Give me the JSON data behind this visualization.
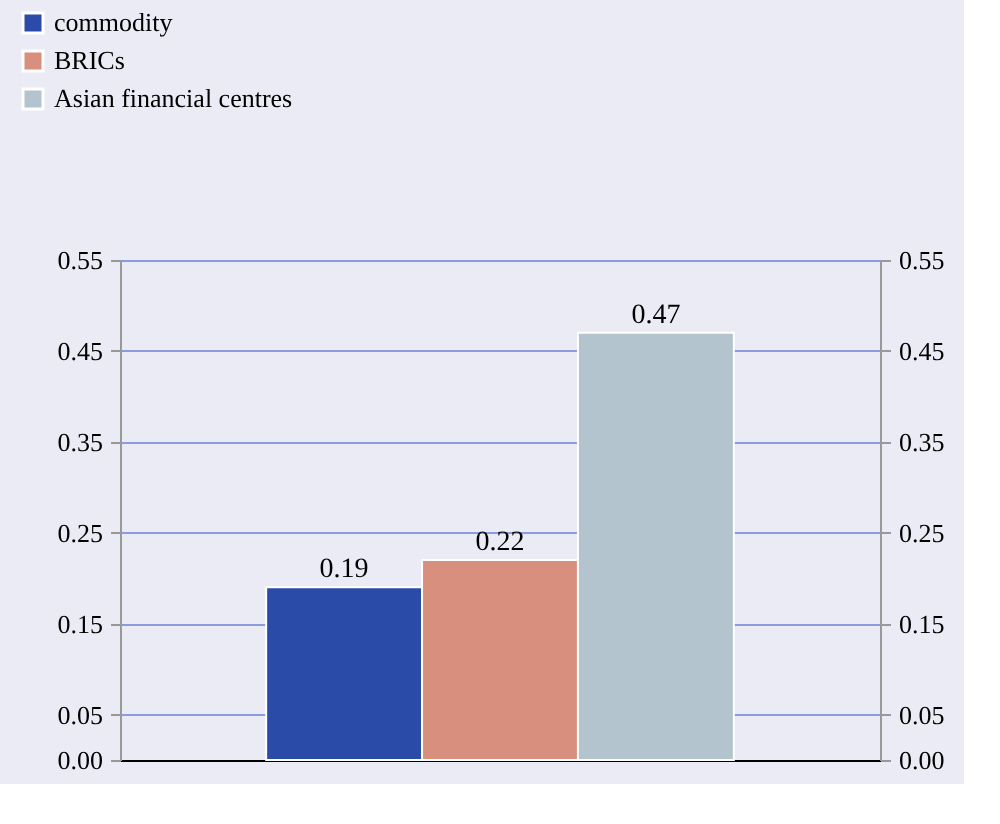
{
  "chart_data": {
    "type": "bar",
    "categories": [
      null
    ],
    "series": [
      {
        "name": "commodity",
        "color": "#2b4ba8",
        "values": [
          0.19
        ]
      },
      {
        "name": "BRICs",
        "color": "#d98f7e",
        "values": [
          0.22
        ]
      },
      {
        "name": "Asian financial centres",
        "color": "#b3c4cf",
        "values": [
          0.47
        ]
      }
    ],
    "ylim": [
      0,
      0.55
    ],
    "yticks": [
      {
        "value": 0,
        "label": "0.00"
      },
      0.05,
      0.15,
      0.25,
      0.35,
      0.45,
      0.55
    ],
    "y2lim": [
      0,
      0.55
    ],
    "y2ticks": [
      {
        "value": 0,
        "label": "0.00"
      },
      0.05,
      0.15,
      0.25,
      0.35,
      0.45,
      0.55
    ],
    "data_labels": true,
    "grid": "y",
    "legend": "top left"
  }
}
